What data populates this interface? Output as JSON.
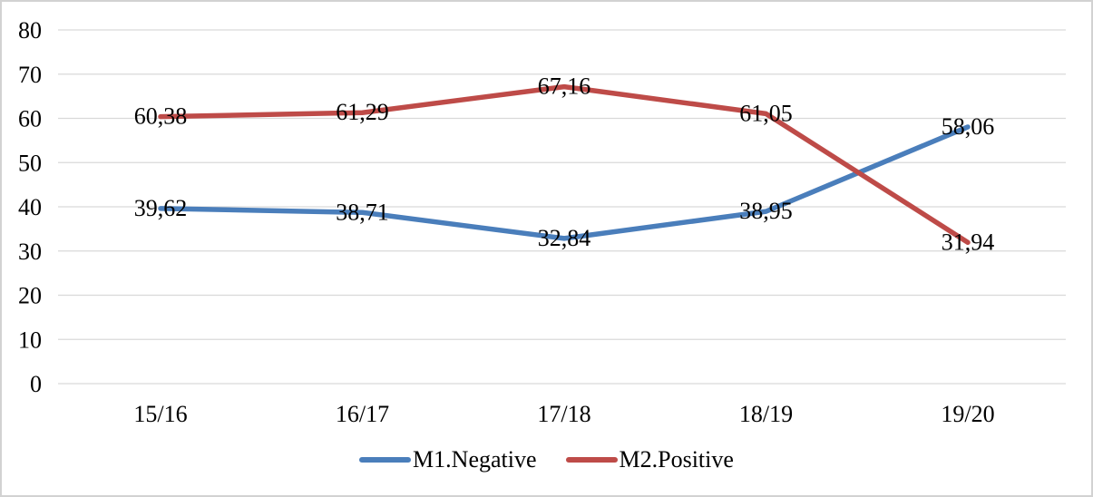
{
  "chart_data": {
    "type": "line",
    "title": "",
    "xlabel": "",
    "ylabel": "",
    "categories": [
      "15/16",
      "16/17",
      "17/18",
      "18/19",
      "19/20"
    ],
    "series": [
      {
        "name": "M1.Negative",
        "color": "#4A7EBB",
        "values": [
          39.62,
          38.71,
          32.84,
          38.95,
          58.06
        ],
        "labels": [
          "39,62",
          "38,71",
          "32,84",
          "38,95",
          "58,06"
        ]
      },
      {
        "name": "M2.Positive",
        "color": "#BE4B48",
        "values": [
          60.38,
          61.29,
          67.16,
          61.05,
          31.94
        ],
        "labels": [
          "60,38",
          "61,29",
          "67,16",
          "61,05",
          "31,94"
        ]
      }
    ],
    "ylim": [
      0,
      80
    ],
    "yticks": [
      0,
      10,
      20,
      30,
      40,
      50,
      60,
      70,
      80
    ],
    "grid": "horizontal",
    "gridline_color": "#D9D9D9",
    "legend_position": "bottom",
    "decimal_separator": ",",
    "data_label_position": "center"
  }
}
